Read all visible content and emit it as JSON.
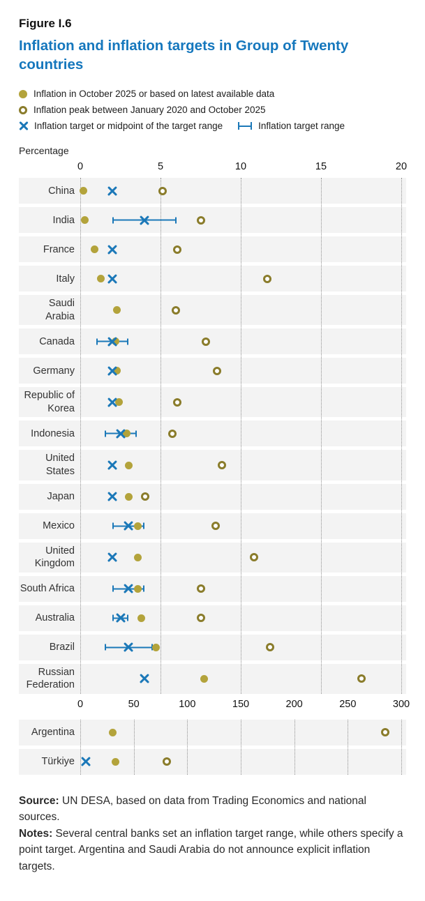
{
  "figure": {
    "label": "Figure I.6",
    "title": "Inflation and inflation targets in Group of Twenty countries"
  },
  "legend": {
    "inflation": "Inflation in October 2025 or based on latest available data",
    "peak": "Inflation peak between January 2020 and October 2025",
    "target": "Inflation target or midpoint of the target range",
    "target_range": "Inflation target range"
  },
  "axis_caption": "Percentage",
  "colors": {
    "title_blue": "#1577bd",
    "marker_olive": "#b3a33b",
    "peak_ring_olive": "#8a7c2b",
    "target_blue": "#1b78b8",
    "row_background": "#f3f3f3",
    "gridline_gray": "#8f8f8f"
  },
  "chart_data": [
    {
      "type": "scatter",
      "title": "Inflation and inflation targets in Group of Twenty countries",
      "xlabel": "Percentage",
      "legend_position": "top",
      "grid": "dotted-vertical",
      "axis": {
        "min": 0,
        "max": 20,
        "ticks": [
          0,
          5,
          10,
          15,
          20
        ]
      },
      "series_names": [
        "Inflation in October 2025 or based on latest available data",
        "Inflation peak between January 2020 and October 2025",
        "Inflation target or midpoint of the target range",
        "Inflation target range"
      ],
      "rows": [
        {
          "country": "China",
          "inflation": 0.2,
          "peak": 5.4,
          "target": 2,
          "range": null
        },
        {
          "country": "India",
          "inflation": 0.3,
          "peak": 7.8,
          "target": 4,
          "range": [
            2,
            6
          ]
        },
        {
          "country": "France",
          "inflation": 0.9,
          "peak": 6.3,
          "target": 2,
          "range": null
        },
        {
          "country": "Italy",
          "inflation": 1.3,
          "peak": 11.9,
          "target": 2,
          "range": null
        },
        {
          "country": "Saudi Arabia",
          "inflation": 2.3,
          "peak": 6.2,
          "target": null,
          "range": null
        },
        {
          "country": "Canada",
          "inflation": 2.2,
          "peak": 8.1,
          "target": 2,
          "range": [
            1,
            3
          ]
        },
        {
          "country": "Germany",
          "inflation": 2.3,
          "peak": 8.8,
          "target": 2,
          "range": null
        },
        {
          "country": "Republic of Korea",
          "inflation": 2.4,
          "peak": 6.3,
          "target": 2,
          "range": null
        },
        {
          "country": "Indonesia",
          "inflation": 2.9,
          "peak": 6.0,
          "target": 2.5,
          "range": [
            1.5,
            3.5
          ]
        },
        {
          "country": "United States",
          "inflation": 3.0,
          "peak": 9.1,
          "target": 2,
          "range": null
        },
        {
          "country": "Japan",
          "inflation": 3.0,
          "peak": 4.3,
          "target": 2,
          "range": null
        },
        {
          "country": "Mexico",
          "inflation": 3.6,
          "peak": 8.7,
          "target": 3,
          "range": [
            2,
            4
          ]
        },
        {
          "country": "United Kingdom",
          "inflation": 3.6,
          "peak": 11.1,
          "target": 2,
          "range": null
        },
        {
          "country": "South Africa",
          "inflation": 3.6,
          "peak": 7.8,
          "target": 3,
          "range": [
            2,
            4
          ]
        },
        {
          "country": "Australia",
          "inflation": 3.8,
          "peak": 7.8,
          "target": 2.5,
          "range": [
            2,
            3
          ]
        },
        {
          "country": "Brazil",
          "inflation": 4.7,
          "peak": 12.1,
          "target": 3,
          "range": [
            1.5,
            4.5
          ]
        },
        {
          "country": "Russian Federation",
          "inflation": 7.7,
          "peak": 17.8,
          "target": 4,
          "range": null
        }
      ]
    },
    {
      "type": "scatter",
      "title": "High-inflation countries",
      "xlabel": "Percentage",
      "grid": "dotted-vertical",
      "axis": {
        "min": 0,
        "max": 300,
        "ticks": [
          0,
          50,
          100,
          150,
          200,
          250,
          300
        ]
      },
      "rows": [
        {
          "country": "Argentina",
          "inflation": 30,
          "peak": 289,
          "target": null,
          "range": null
        },
        {
          "country": "Türkiye",
          "inflation": 33,
          "peak": 85,
          "target": 5,
          "range": null
        }
      ]
    }
  ],
  "footer": {
    "source_label": "Source:",
    "source_text": " UN DESA, based on data from Trading Economics and national sources.",
    "notes_label": "Notes:",
    "notes_text": " Several central banks set an inflation target range, while others specify a point target. Argentina and Saudi Arabia do not announce explicit inflation targets."
  }
}
